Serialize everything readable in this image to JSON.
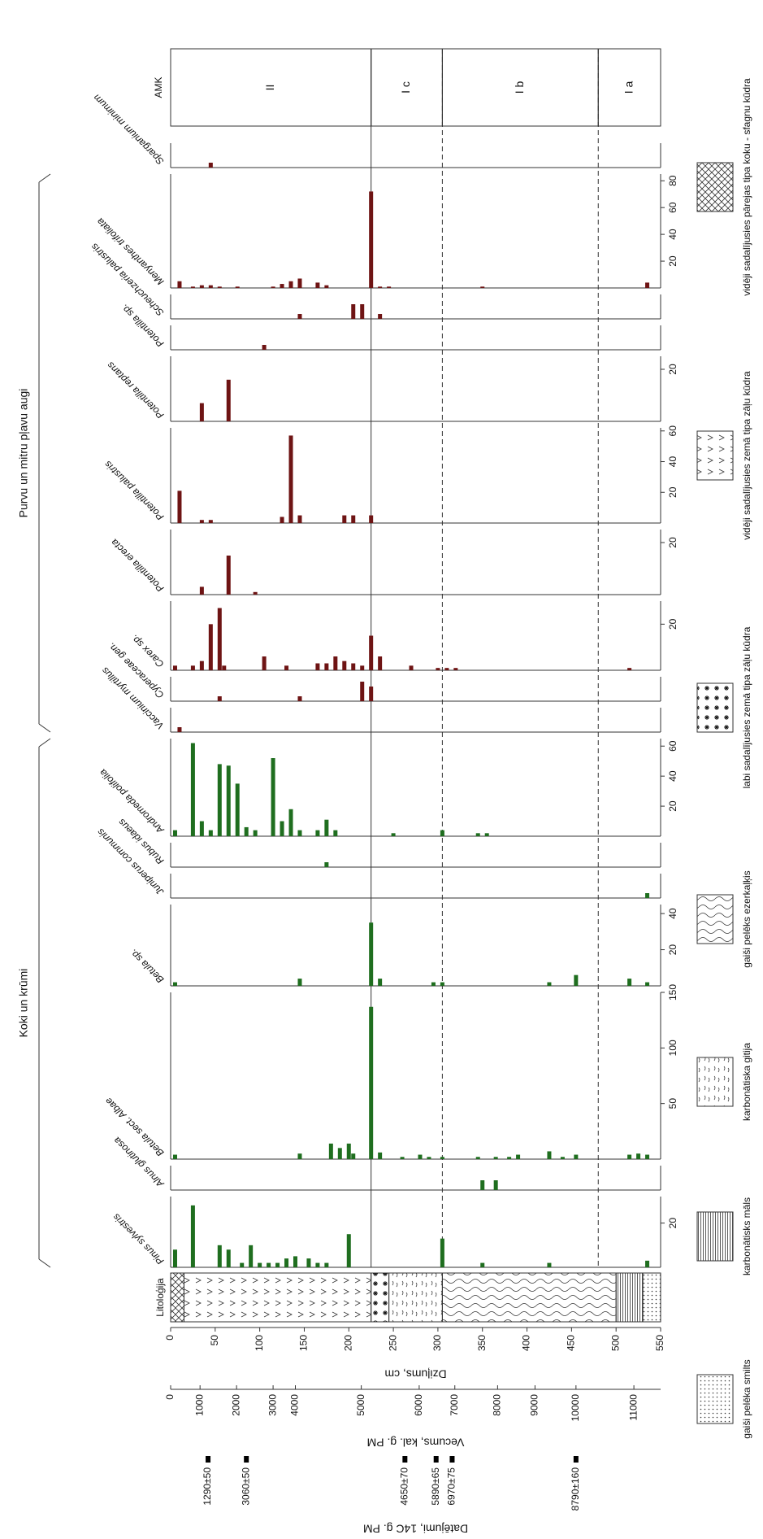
{
  "chart_data": {
    "type": "stratigraphic-bar",
    "xlabel": "Dziļums, cm",
    "xlim": [
      0,
      550
    ],
    "xticks": [
      0,
      50,
      100,
      150,
      200,
      250,
      300,
      350,
      400,
      450,
      500,
      550
    ],
    "lithology_label": "Litoloģija",
    "zone_label": "AMK",
    "zones": [
      {
        "label": "II",
        "from": 0,
        "to": 225,
        "boundary": "solid"
      },
      {
        "label": "I c",
        "from": 225,
        "to": 305,
        "boundary": "dashed"
      },
      {
        "label": "I b",
        "from": 305,
        "to": 480,
        "boundary": "dashed"
      },
      {
        "label": "I a",
        "from": 480,
        "to": 550
      }
    ],
    "groups": [
      {
        "label": "Koki un krūmi",
        "color": "#1f6e1f",
        "series": [
          {
            "name": "Pinus sylvestris",
            "x": [
              5,
              25,
              55,
              65,
              80,
              90,
              100,
              110,
              120,
              130,
              140,
              155,
              165,
              175,
              200,
              305,
              350,
              425,
              535
            ],
            "values": [
              8,
              28,
              10,
              8,
              2,
              10,
              2,
              2,
              2,
              4,
              5,
              4,
              2,
              2,
              15,
              13,
              2,
              2,
              3
            ],
            "ylim": [
              0,
              32
            ],
            "yticks": [
              20
            ]
          },
          {
            "name": "Alnus glutinosa",
            "x": [
              350,
              365
            ],
            "values": [
              2,
              2
            ],
            "ylim": [
              0,
              5
            ]
          },
          {
            "name": "Betula sect. Albae",
            "x": [
              5,
              145,
              180,
              190,
              200,
              205,
              225,
              235,
              260,
              280,
              290,
              305,
              345,
              365,
              380,
              390,
              425,
              440,
              455,
              515,
              525,
              535
            ],
            "values": [
              4,
              5,
              14,
              10,
              14,
              5,
              137,
              6,
              2,
              4,
              2,
              2,
              2,
              2,
              2,
              4,
              7,
              2,
              4,
              4,
              5,
              4
            ],
            "ylim": [
              0,
              150
            ],
            "yticks": [
              50,
              100,
              150
            ]
          },
          {
            "name": "Betula sp.",
            "x": [
              5,
              145,
              225,
              235,
              295,
              305,
              425,
              455,
              515,
              535
            ],
            "values": [
              2,
              4,
              35,
              4,
              2,
              2,
              2,
              6,
              4,
              2
            ],
            "ylim": [
              0,
              45
            ],
            "yticks": [
              20,
              40
            ]
          },
          {
            "name": "Juniperus communis",
            "x": [
              535
            ],
            "values": [
              1
            ],
            "ylim": [
              0,
              5
            ]
          },
          {
            "name": "Rubus idaeus",
            "x": [
              175
            ],
            "values": [
              1
            ],
            "ylim": [
              0,
              5
            ]
          },
          {
            "name": "Andromeda polifolia",
            "x": [
              5,
              25,
              35,
              45,
              55,
              65,
              75,
              85,
              95,
              115,
              125,
              135,
              145,
              165,
              175,
              185,
              250,
              305,
              345,
              355
            ],
            "values": [
              4,
              62,
              10,
              4,
              48,
              47,
              35,
              6,
              4,
              52,
              10,
              18,
              4,
              4,
              11,
              4,
              2,
              4,
              2,
              2
            ],
            "ylim": [
              0,
              65
            ],
            "yticks": [
              20,
              40,
              60
            ]
          }
        ]
      },
      {
        "label": "Purvu un mitru pļavu augi",
        "color": "#6e1414",
        "series": [
          {
            "name": "Vaccinium myrtillus",
            "x": [
              10
            ],
            "values": [
              1
            ],
            "ylim": [
              0,
              5
            ]
          },
          {
            "name": "Cyperaceae gen.",
            "x": [
              55,
              145,
              215,
              225
            ],
            "values": [
              1,
              1,
              4,
              3
            ],
            "ylim": [
              0,
              5
            ]
          },
          {
            "name": "Carex sp.",
            "x": [
              5,
              25,
              35,
              45,
              55,
              60,
              105,
              130,
              165,
              175,
              185,
              195,
              205,
              215,
              225,
              235,
              270,
              300,
              310,
              320,
              515
            ],
            "values": [
              2,
              2,
              4,
              20,
              27,
              2,
              6,
              2,
              3,
              3,
              6,
              4,
              3,
              2,
              15,
              6,
              2,
              1,
              1,
              1,
              1
            ],
            "ylim": [
              0,
              30
            ],
            "yticks": [
              20
            ]
          },
          {
            "name": "Potentilla erecta",
            "x": [
              35,
              65,
              95
            ],
            "values": [
              3,
              15,
              1
            ],
            "ylim": [
              0,
              25
            ],
            "yticks": [
              20
            ]
          },
          {
            "name": "Potentilla palustris",
            "x": [
              10,
              35,
              45,
              125,
              135,
              145,
              195,
              205,
              225
            ],
            "values": [
              21,
              2,
              2,
              4,
              57,
              5,
              5,
              5,
              5
            ],
            "ylim": [
              0,
              62
            ],
            "yticks": [
              20,
              40,
              60
            ]
          },
          {
            "name": "Potentilla reptans",
            "x": [
              35,
              65
            ],
            "values": [
              7,
              16
            ],
            "ylim": [
              0,
              25
            ],
            "yticks": [
              20
            ]
          },
          {
            "name": "Potentilla sp.",
            "x": [
              105
            ],
            "values": [
              1
            ],
            "ylim": [
              0,
              5
            ]
          },
          {
            "name": "Scheuchzeria palustris",
            "x": [
              145,
              205,
              215,
              235
            ],
            "values": [
              1,
              3,
              3,
              1
            ],
            "ylim": [
              0,
              5
            ]
          },
          {
            "name": "Menyanthes trifoliata",
            "x": [
              10,
              25,
              35,
              45,
              55,
              75,
              115,
              125,
              135,
              145,
              165,
              175,
              225,
              235,
              245,
              350,
              535
            ],
            "values": [
              5,
              1,
              2,
              2,
              1,
              1,
              1,
              3,
              5,
              7,
              4,
              2,
              72,
              1,
              1,
              1,
              4
            ],
            "ylim": [
              0,
              85
            ],
            "yticks": [
              20,
              40,
              60,
              80
            ]
          }
        ]
      },
      {
        "color": "#6e1414",
        "series": [
          {
            "name": "Sparganium minimum",
            "x": [
              45
            ],
            "values": [
              1
            ],
            "ylim": [
              0,
              5
            ]
          }
        ]
      }
    ],
    "lithology": [
      {
        "from": 0,
        "to": 15,
        "pattern": "crosshatch"
      },
      {
        "from": 15,
        "to": 225,
        "pattern": "chevron"
      },
      {
        "from": 225,
        "to": 245,
        "pattern": "stars"
      },
      {
        "from": 245,
        "to": 305,
        "pattern": "dashes"
      },
      {
        "from": 305,
        "to": 500,
        "pattern": "wavy"
      },
      {
        "from": 500,
        "to": 530,
        "pattern": "vlines"
      },
      {
        "from": 530,
        "to": 550,
        "pattern": "dots"
      }
    ],
    "legend": [
      {
        "pattern": "crosshatch",
        "label": "vidēji sadalījusies pārejas tipa koku - sfagnu kūdra"
      },
      {
        "pattern": "chevron",
        "label": "vidēji sadalījusies zemā tipa zāļu kūdra"
      },
      {
        "pattern": "stars",
        "label": "labi sadalījusies zemā tipa zāļu kūdra"
      },
      {
        "pattern": "wavy",
        "label": "gaiši pelēks ezerkaļķis"
      },
      {
        "pattern": "dashes",
        "label": "karbonātiska gitija"
      },
      {
        "pattern": "vlines",
        "label": "karbonātisks māls"
      },
      {
        "pattern": "dots",
        "label": "gaiši pelēka smilts"
      }
    ],
    "age_axis": {
      "label": "Vecums, kal. g. PM",
      "ticks": [
        0,
        1000,
        2000,
        3000,
        4000,
        5000,
        6000,
        7000,
        8000,
        9000,
        10000,
        11000
      ],
      "depths": [
        0,
        33,
        74,
        115,
        140,
        214,
        279,
        319,
        367,
        409,
        455,
        520
      ]
    },
    "dates": {
      "label": "Datējumi, 14C g. PM",
      "labels": [
        "1290±50",
        "3060±50",
        "4650±70",
        "5890±65",
        "6970±75",
        "8790±160"
      ],
      "depths": [
        42,
        85,
        263,
        298,
        316,
        455
      ]
    }
  }
}
